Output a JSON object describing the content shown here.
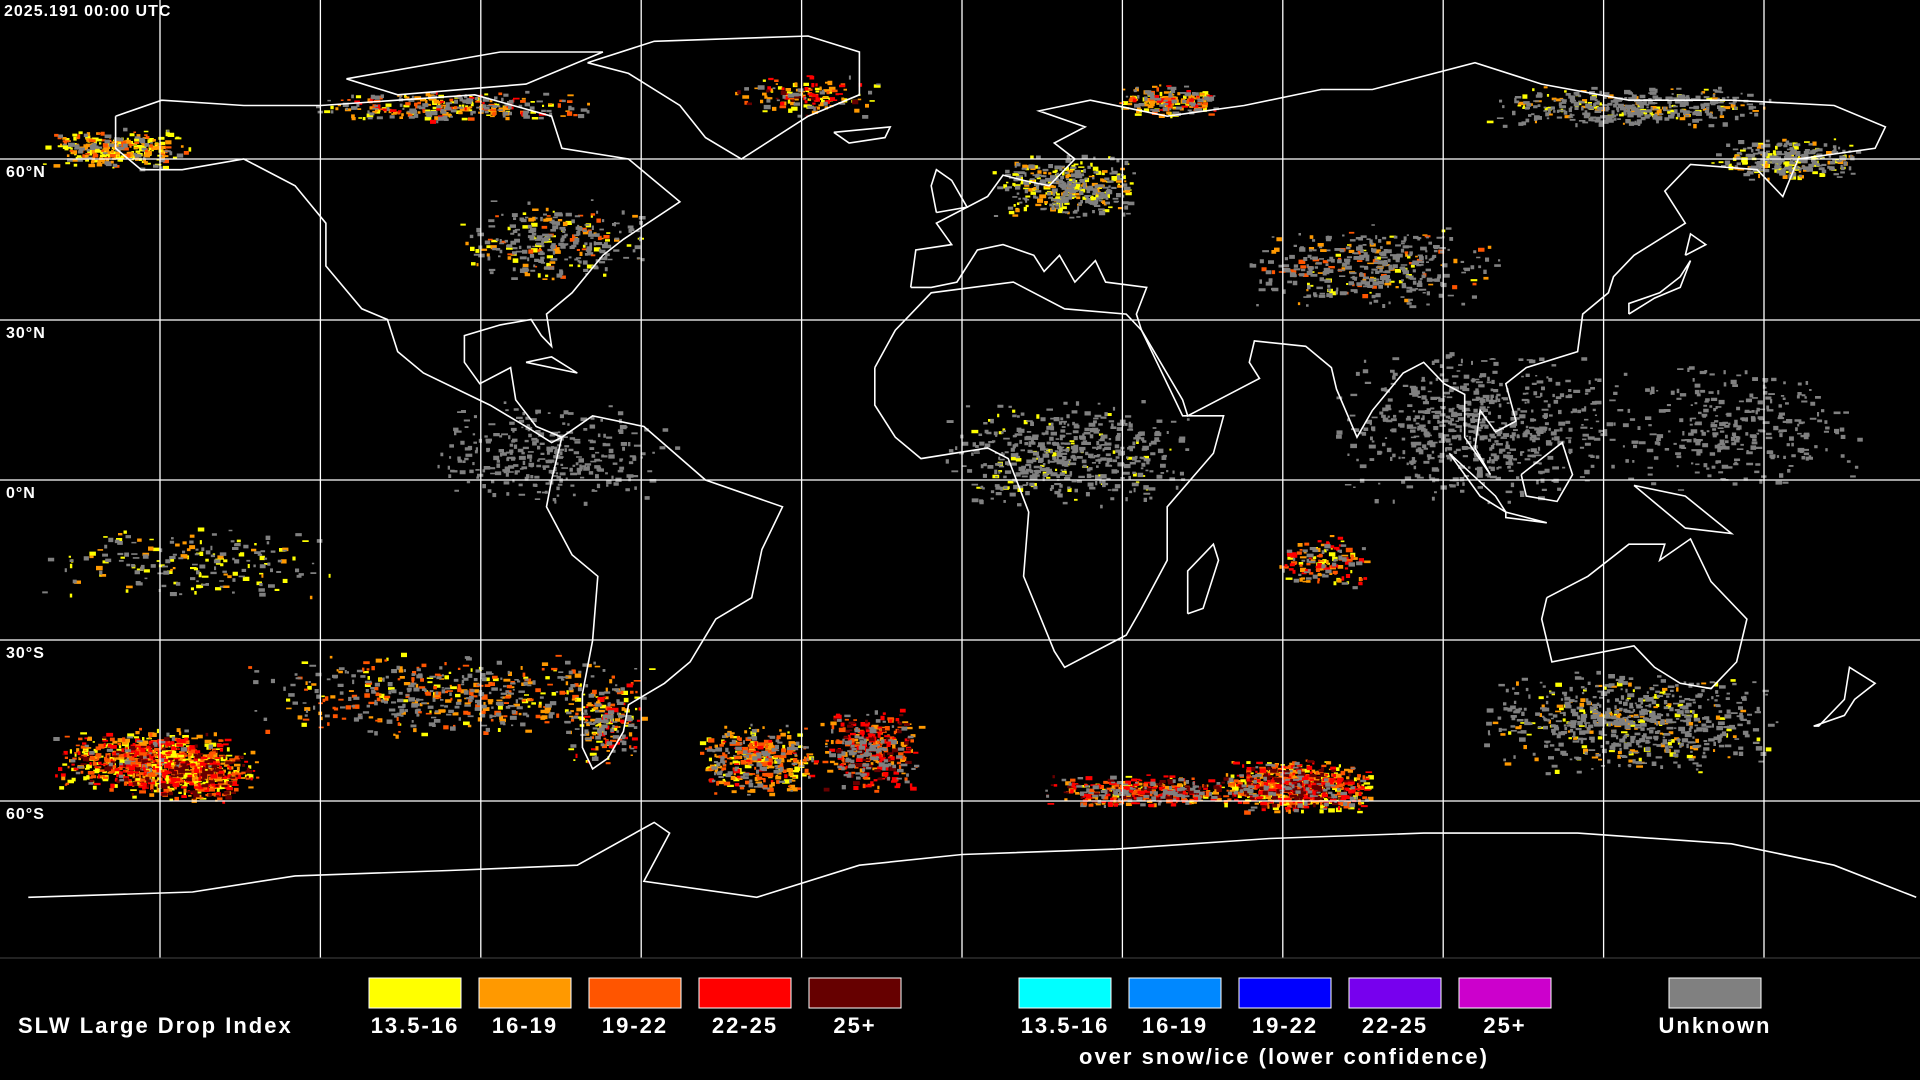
{
  "header": {
    "timestamp": "2025.191 00:00 UTC"
  },
  "map": {
    "latitude_labels": [
      "60°N",
      "30°N",
      "0°N",
      "30°S",
      "60°S"
    ]
  },
  "legend": {
    "title": "SLW Large Drop Index",
    "groups": [
      {
        "items": [
          {
            "label": "13.5-16",
            "color": "#ffff00"
          },
          {
            "label": "16-19",
            "color": "#ff9900"
          },
          {
            "label": "19-22",
            "color": "#ff5500"
          },
          {
            "label": "22-25",
            "color": "#ff0000"
          },
          {
            "label": "25+",
            "color": "#660000"
          }
        ]
      },
      {
        "items": [
          {
            "label": "13.5-16",
            "color": "#00ffff"
          },
          {
            "label": "16-19",
            "color": "#0088ff"
          },
          {
            "label": "19-22",
            "color": "#0000ff"
          },
          {
            "label": "22-25",
            "color": "#7700ee"
          },
          {
            "label": "25+",
            "color": "#cc00cc"
          }
        ],
        "caption": "over snow/ice (lower confidence)"
      }
    ],
    "unknown": {
      "label": "Unknown",
      "color": "#808080"
    }
  }
}
